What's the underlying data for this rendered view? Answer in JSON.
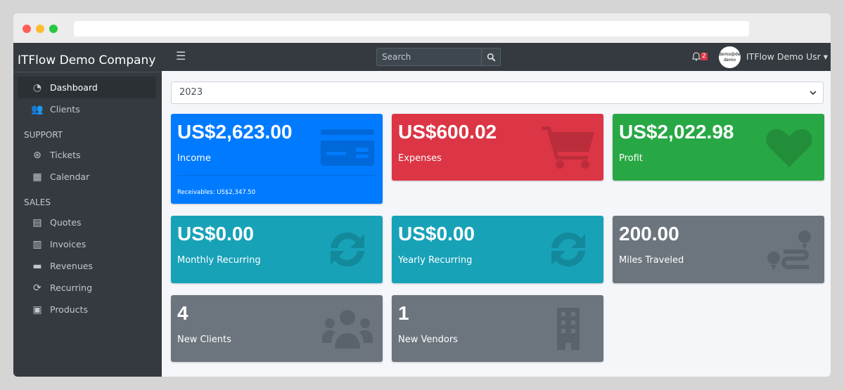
{
  "sidebar": {
    "brand": "ITFlow Demo Company",
    "items": [
      {
        "label": "Dashboard",
        "icon": "tachometer-icon"
      },
      {
        "label": "Clients",
        "icon": "users-icon"
      }
    ],
    "support_header": "SUPPORT",
    "support": [
      {
        "label": "Tickets",
        "icon": "life-ring-icon"
      },
      {
        "label": "Calendar",
        "icon": "calendar-icon"
      }
    ],
    "sales_header": "SALES",
    "sales": [
      {
        "label": "Quotes",
        "icon": "file-icon"
      },
      {
        "label": "Invoices",
        "icon": "invoice-icon"
      },
      {
        "label": "Revenues",
        "icon": "credit-card-icon"
      },
      {
        "label": "Recurring",
        "icon": "sync-icon"
      },
      {
        "label": "Products",
        "icon": "box-icon"
      }
    ]
  },
  "topnav": {
    "search_placeholder": "Search",
    "notifications": "2",
    "avatar_text": "demo@demo demo",
    "user": "ITFlow Demo Usr"
  },
  "year": "2023",
  "cards": [
    {
      "value": "US$2,623.00",
      "label": "Income",
      "footer": "Receivables: US$2,347.50",
      "color": "#007bff"
    },
    {
      "value": "US$600.02",
      "label": "Expenses",
      "color": "#dc3545"
    },
    {
      "value": "US$2,022.98",
      "label": "Profit",
      "color": "#28a745"
    },
    {
      "value": "US$0.00",
      "label": "Monthly Recurring",
      "color": "#17a2b8"
    },
    {
      "value": "US$0.00",
      "label": "Yearly Recurring",
      "color": "#17a2b8"
    },
    {
      "value": "200.00",
      "label": "Miles Traveled",
      "color": "#6c757d"
    },
    {
      "value": "4",
      "label": "New Clients",
      "color": "#6c757d"
    },
    {
      "value": "1",
      "label": "New Vendors",
      "color": "#6c757d"
    }
  ]
}
